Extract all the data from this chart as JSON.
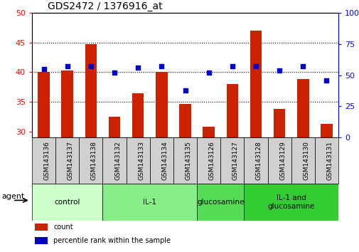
{
  "title": "GDS2472 / 1376916_at",
  "categories": [
    "GSM143136",
    "GSM143137",
    "GSM143138",
    "GSM143132",
    "GSM143133",
    "GSM143134",
    "GSM143135",
    "GSM143126",
    "GSM143127",
    "GSM143128",
    "GSM143129",
    "GSM143130",
    "GSM143131"
  ],
  "groups": [
    {
      "label": "control",
      "color": "#ccffcc",
      "span": [
        0,
        3
      ]
    },
    {
      "label": "IL-1",
      "color": "#88ee88",
      "span": [
        3,
        7
      ]
    },
    {
      "label": "glucosamine",
      "color": "#55dd55",
      "span": [
        7,
        9
      ]
    },
    {
      "label": "IL-1 and\nglucosamine",
      "color": "#33cc33",
      "span": [
        9,
        13
      ]
    }
  ],
  "bar_values": [
    40.0,
    40.3,
    44.7,
    32.5,
    36.5,
    40.0,
    34.7,
    30.8,
    38.0,
    47.0,
    33.8,
    38.8,
    31.3
  ],
  "blue_values": [
    55,
    57,
    57,
    52,
    56,
    57,
    38,
    52,
    57,
    57,
    54,
    57,
    46
  ],
  "bar_color": "#cc2200",
  "blue_color": "#0000cc",
  "ylim_left": [
    29,
    50
  ],
  "ylim_right": [
    0,
    100
  ],
  "yticks_left": [
    30,
    35,
    40,
    45,
    50
  ],
  "yticks_right": [
    0,
    25,
    50,
    75,
    100
  ],
  "grid_values": [
    35,
    40,
    45
  ],
  "agent_label": "agent",
  "legend": [
    {
      "label": "count",
      "color": "#cc2200"
    },
    {
      "label": "percentile rank within the sample",
      "color": "#0000cc"
    }
  ],
  "bar_width": 0.5,
  "tick_box_color": "#d0d0d0",
  "group_fill_colors": [
    "#ccffcc",
    "#88ee88",
    "#55dd55",
    "#33cc33"
  ]
}
